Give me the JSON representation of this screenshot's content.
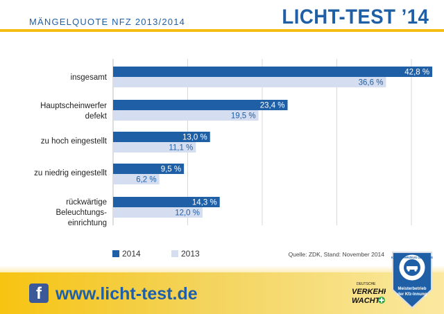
{
  "header": {
    "subtitle": "MÄNGELQUOTE NFZ 2013/2014",
    "title": "LICHT-TEST ’14"
  },
  "colors": {
    "series_2014": "#1f5fa6",
    "series_2013": "#d5ddf1",
    "accent_yellow": "#f5bd14",
    "brand_blue": "#1f5fa6"
  },
  "chart_data": {
    "type": "bar",
    "orientation": "horizontal",
    "categories": [
      "insgesamt",
      "Hauptscheinwerfer\ndefekt",
      "zu hoch eingestellt",
      "zu niedrig eingestellt",
      "rückwärtige\nBeleuchtungs-\neinrichtung"
    ],
    "series": [
      {
        "name": "2014",
        "values": [
          42.8,
          23.4,
          13.0,
          9.5,
          14.3
        ],
        "labels": [
          "42,8 %",
          "23,4 %",
          "13,0 %",
          "9,5 %",
          "14,3 %"
        ]
      },
      {
        "name": "2013",
        "values": [
          36.6,
          19.5,
          11.1,
          6.2,
          12.0
        ],
        "labels": [
          "36,6 %",
          "19,5 %",
          "11,1 %",
          "6,2 %",
          "12,0 %"
        ]
      }
    ],
    "xlim": [
      0,
      45
    ],
    "grid": true,
    "legend_position": "bottom-left"
  },
  "legend": [
    {
      "name": "2014",
      "color": "#1f5fa6"
    },
    {
      "name": "2013",
      "color": "#d5ddf1"
    }
  ],
  "source": "Quelle: ZDK, Stand: November 2014",
  "footer": {
    "facebook_icon": "facebook-icon",
    "website": "www.licht-test.de",
    "verkehrswacht_logo": [
      "DEUTSCHE",
      "VERKEHRS",
      "WACHT"
    ],
    "badge": {
      "ring_text": "KRAFTFAHRZEUG GEWERBE",
      "line1": "Meisterbetrieb",
      "line2": "der Kfz-Innung"
    }
  }
}
